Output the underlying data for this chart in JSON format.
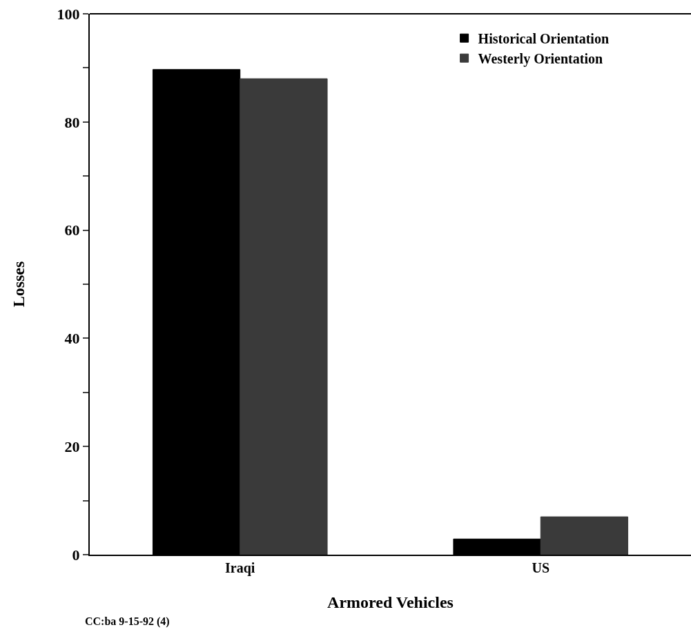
{
  "chart_data": {
    "type": "bar",
    "xlabel": "Armored Vehicles",
    "ylabel": "Losses",
    "categories": [
      "Iraqi",
      "US"
    ],
    "series": [
      {
        "name": "Historical Orientation",
        "color": "#000000",
        "values": [
          89.7,
          2.9
        ]
      },
      {
        "name": "Westerly Orientation",
        "color": "#3a3a3a",
        "values": [
          88.0,
          7.0
        ]
      }
    ],
    "ylim": [
      0,
      100
    ],
    "yticks": [
      0,
      {
        "value": 10,
        "label": null
      },
      20,
      {
        "value": 30,
        "label": null
      },
      40,
      {
        "value": 50,
        "label": null
      },
      60,
      {
        "value": 70,
        "label": null
      },
      80,
      {
        "value": 90,
        "label": null
      },
      100
    ],
    "legend": "top right",
    "annotations": [
      "CC:ba 9-15-92 (4)"
    ]
  }
}
